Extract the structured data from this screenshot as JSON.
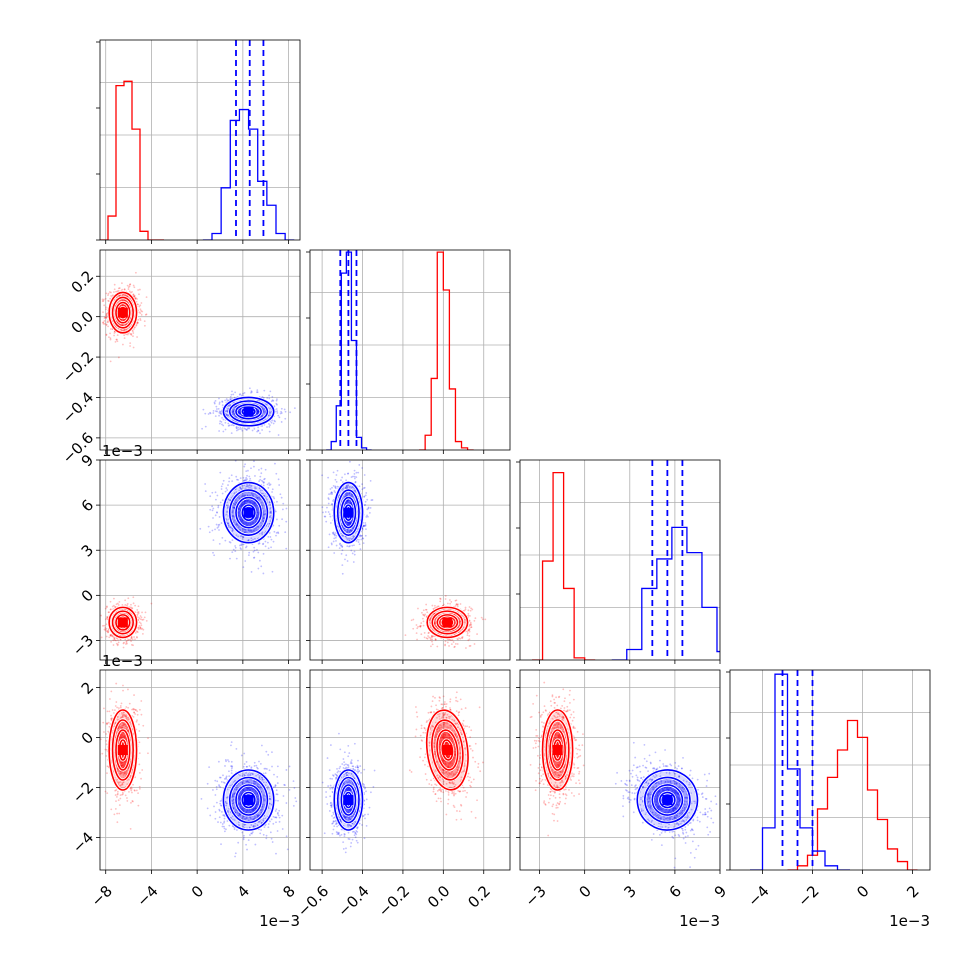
{
  "chart_data": {
    "type": "corner",
    "colors": {
      "red": "#ff0000",
      "blue": "#0000ff",
      "grid": "#b0b0b0"
    },
    "grid": true,
    "parameters": [
      {
        "range": [
          -0.0085,
          0.009
        ],
        "ticks": [
          -8,
          -4,
          0,
          4,
          8
        ],
        "tick_labels": [
          "−8",
          "−4",
          "0",
          "4",
          "8"
        ],
        "tick_scale": 0.001,
        "offset_label": "1e−3"
      },
      {
        "range": [
          -0.66,
          0.33
        ],
        "ticks": [
          -0.6,
          -0.4,
          -0.2,
          0.0,
          0.2
        ],
        "tick_labels": [
          "−0.6",
          "−0.4",
          "−0.2",
          "0.0",
          "0.2"
        ],
        "tick_scale": 1,
        "offset_label": ""
      },
      {
        "range": [
          -0.0043,
          0.009
        ],
        "ticks": [
          -3,
          0,
          3,
          6,
          9
        ],
        "tick_labels": [
          "−3",
          "0",
          "3",
          "6",
          "9"
        ],
        "tick_scale": 0.001,
        "offset_label": "1e−3"
      },
      {
        "range": [
          -0.0053,
          0.0027
        ],
        "ticks": [
          -4,
          -2,
          0,
          2
        ],
        "tick_labels": [
          "−4",
          "−2",
          "0",
          "2"
        ],
        "tick_scale": 0.001,
        "offset_label": "1e−3"
      }
    ],
    "series": [
      {
        "color": "red",
        "mean": [
          -0.0065,
          0.02,
          -0.0018,
          -0.0005
        ],
        "sd": [
          0.0006,
          0.05,
          0.0005,
          0.0008
        ]
      },
      {
        "color": "blue",
        "mean": [
          0.0045,
          -0.47,
          0.0055,
          -0.0025
        ],
        "sd": [
          0.0011,
          0.035,
          0.001,
          0.0006
        ]
      }
    ],
    "histograms": [
      {
        "red": [
          0,
          0.11,
          0.71,
          0.73,
          0.51,
          0.04,
          0,
          0
        ],
        "blue": [
          0,
          0.03,
          0.24,
          0.55,
          0.6,
          0.51,
          0.27,
          0.16,
          0.03,
          0
        ],
        "red_bins": [
          -0.0085,
          -0.0078,
          -0.0071,
          -0.0064,
          -0.0057,
          -0.005,
          -0.0043,
          -0.0036
        ],
        "blue_bins": [
          0.0005,
          0.0013,
          0.0021,
          0.0029,
          0.0037,
          0.0045,
          0.0053,
          0.0061,
          0.0069,
          0.0077
        ],
        "peak": 0.92,
        "quantiles": [
          0.0034,
          0.0046,
          0.0058
        ]
      },
      {
        "red": [
          0,
          0.07,
          0.34,
          0.94,
          0.76,
          0.29,
          0.04,
          0.01,
          0
        ],
        "blue": [
          0,
          0.04,
          0.21,
          0.84,
          0.94,
          0.52,
          0.06,
          0.01,
          0
        ],
        "red_bins": [
          -0.12,
          -0.09,
          -0.06,
          -0.03,
          0.0,
          0.03,
          0.06,
          0.09,
          0.12
        ],
        "blue_bins": [
          -0.58,
          -0.555,
          -0.53,
          -0.505,
          -0.48,
          -0.455,
          -0.43,
          -0.405,
          -0.38
        ],
        "peak": 0.95,
        "quantiles": [
          -0.51,
          -0.47,
          -0.43
        ]
      },
      {
        "red": [
          0,
          0.47,
          0.89,
          0.34,
          0.01,
          0
        ],
        "blue": [
          0,
          0.05,
          0.34,
          0.48,
          0.63,
          0.51,
          0.25,
          0.04,
          0
        ],
        "red_bins": [
          -0.0035,
          -0.0028,
          -0.0021,
          -0.0014,
          -0.0007,
          0.0
        ],
        "blue_bins": [
          0.0018,
          0.0028,
          0.0038,
          0.0048,
          0.0058,
          0.0068,
          0.0078,
          0.0088,
          0.0098
        ],
        "peak": 0.95,
        "quantiles": [
          0.0045,
          0.0055,
          0.0065
        ]
      },
      {
        "red": [
          0,
          0.02,
          0.07,
          0.29,
          0.44,
          0.57,
          0.71,
          0.63,
          0.38,
          0.24,
          0.1,
          0.04,
          0
        ],
        "blue": [
          0,
          0.2,
          0.93,
          0.48,
          0.2,
          0.09,
          0.02,
          0
        ],
        "red_bins": [
          -0.003,
          -0.0026,
          -0.0022,
          -0.0018,
          -0.0014,
          -0.001,
          -0.0006,
          -0.0002,
          0.0002,
          0.0006,
          0.001,
          0.0014,
          0.0018
        ],
        "blue_bins": [
          -0.0045,
          -0.004,
          -0.0035,
          -0.003,
          -0.0025,
          -0.002,
          -0.0015,
          -0.001
        ],
        "peak": 0.95,
        "quantiles": [
          -0.0032,
          -0.0026,
          -0.002
        ]
      }
    ]
  }
}
